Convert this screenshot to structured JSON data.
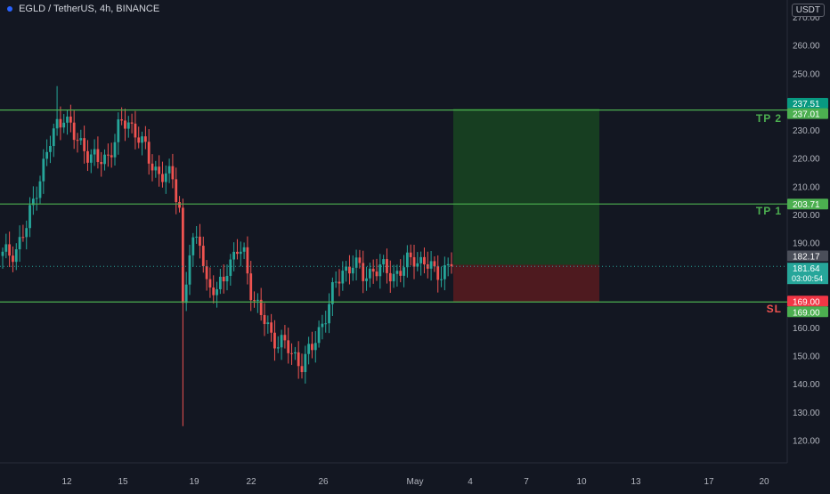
{
  "header": {
    "symbol_title": "EGLD / TetherUS, 4h, BINANCE",
    "currency": "USDT"
  },
  "colors": {
    "background": "#131722",
    "up": "#26a69a",
    "down": "#ef5350",
    "level_line": "#4caf50",
    "target_zone": "#1b5e20",
    "stop_zone": "#7f1d1d",
    "price_badge": "#26a69a",
    "stop_badge": "#f23645",
    "target_badge": "#089981"
  },
  "chart_data": {
    "type": "candlestick",
    "title": "EGLD / TetherUS, 4h, BINANCE",
    "ylim": [
      112,
      276
    ],
    "y_ticks": [
      "270.00",
      "260.00",
      "250.00",
      "240.00",
      "230.00",
      "220.00",
      "210.00",
      "200.00",
      "190.00",
      "180.00",
      "170.00",
      "160.00",
      "150.00",
      "140.00",
      "130.00",
      "120.00"
    ],
    "x_ticks": [
      "12",
      "15",
      "19",
      "22",
      "26",
      "May",
      "4",
      "7",
      "10",
      "13",
      "17",
      "20"
    ],
    "key_points": [
      {
        "i": 0,
        "v": 185
      },
      {
        "i": 4,
        "v": 188
      },
      {
        "i": 7,
        "v": 195
      },
      {
        "i": 10,
        "v": 210
      },
      {
        "i": 14,
        "v": 225
      },
      {
        "i": 16,
        "v": 232
      },
      {
        "i": 18,
        "v": 236
      },
      {
        "i": 21,
        "v": 227
      },
      {
        "i": 24,
        "v": 224
      },
      {
        "i": 28,
        "v": 218
      },
      {
        "i": 31,
        "v": 221
      },
      {
        "i": 34,
        "v": 230
      },
      {
        "i": 37,
        "v": 233
      },
      {
        "i": 40,
        "v": 228
      },
      {
        "i": 43,
        "v": 219
      },
      {
        "i": 46,
        "v": 215
      },
      {
        "i": 50,
        "v": 212
      },
      {
        "i": 52,
        "v": 203
      },
      {
        "i": 53,
        "v": 168
      },
      {
        "i": 55,
        "v": 186
      },
      {
        "i": 58,
        "v": 192
      },
      {
        "i": 60,
        "v": 176
      },
      {
        "i": 63,
        "v": 171
      },
      {
        "i": 66,
        "v": 182
      },
      {
        "i": 69,
        "v": 187
      },
      {
        "i": 71,
        "v": 185
      },
      {
        "i": 73,
        "v": 174
      },
      {
        "i": 76,
        "v": 164
      },
      {
        "i": 79,
        "v": 157
      },
      {
        "i": 82,
        "v": 155
      },
      {
        "i": 85,
        "v": 150
      },
      {
        "i": 88,
        "v": 148
      },
      {
        "i": 91,
        "v": 152
      },
      {
        "i": 94,
        "v": 162
      },
      {
        "i": 97,
        "v": 172
      },
      {
        "i": 100,
        "v": 180
      },
      {
        "i": 103,
        "v": 183
      },
      {
        "i": 106,
        "v": 178
      },
      {
        "i": 109,
        "v": 181
      },
      {
        "i": 112,
        "v": 180
      },
      {
        "i": 115,
        "v": 179
      },
      {
        "i": 118,
        "v": 181
      },
      {
        "i": 121,
        "v": 185
      },
      {
        "i": 124,
        "v": 183
      },
      {
        "i": 127,
        "v": 179
      },
      {
        "i": 130,
        "v": 181
      },
      {
        "i": 132,
        "v": 181.64
      }
    ],
    "candle_count": 133,
    "low_wick": {
      "value": 125
    },
    "levels": [
      {
        "name": "TP 2",
        "value": 237.01,
        "badge": "237.01"
      },
      {
        "name": "TP 1",
        "value": 203.71,
        "badge": "203.71"
      },
      {
        "name": "SL",
        "value": 169.0,
        "badge": "169.00"
      }
    ],
    "position": {
      "target": 237.51,
      "entry": 182.17,
      "stop": 169.0,
      "target_label": "237.51",
      "entry_label": "182.17",
      "stop_label": "169.00"
    },
    "current_price": {
      "value": 181.64,
      "label": "181.64",
      "countdown": "03:00:54"
    }
  }
}
